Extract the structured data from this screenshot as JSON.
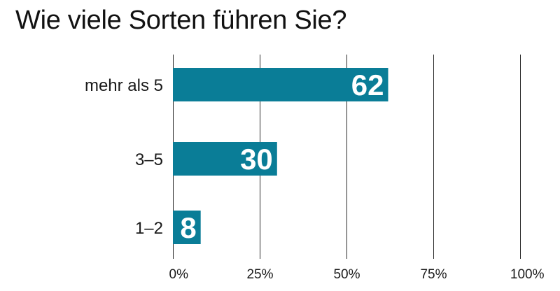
{
  "chart_data": {
    "type": "bar",
    "orientation": "horizontal",
    "title": "Wie viele Sorten führen Sie?",
    "categories": [
      "mehr als 5",
      "3–5",
      "1–2"
    ],
    "values": [
      62,
      30,
      8
    ],
    "value_labels": [
      "62",
      "30",
      "8"
    ],
    "xlim": [
      0,
      100
    ],
    "x_ticks": [
      0,
      25,
      50,
      75,
      100
    ],
    "x_tick_labels": [
      "0%",
      "25%",
      "50%",
      "75%",
      "100%"
    ],
    "grid": true,
    "bar_color": "#0a7d97",
    "value_label_color": "#ffffff"
  }
}
